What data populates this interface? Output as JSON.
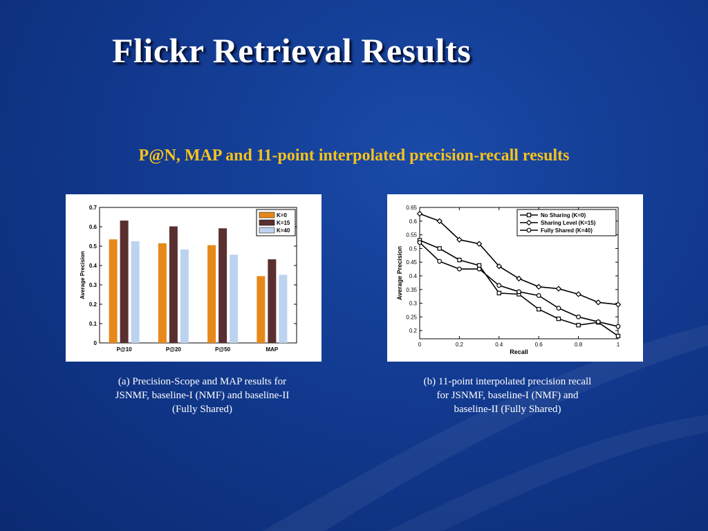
{
  "slide": {
    "title": "Flickr Retrieval Results",
    "subtitle": "P@N, MAP and 11-point interpolated precision-recall results",
    "caption_a": "(a) Precision-Scope and MAP results for JSNMF, baseline-I (NMF) and baseline-II (Fully Shared)",
    "caption_b": "(b) 11-point interpolated precision recall for JSNMF, baseline-I (NMF) and baseline-II (Fully Shared)",
    "colors": {
      "background": "#123a90",
      "title": "#ffffff",
      "subtitle": "#f6c21c",
      "caption": "#ffffff"
    }
  },
  "chart_data": [
    {
      "type": "bar",
      "categories": [
        "P@10",
        "P@20",
        "P@50",
        "MAP"
      ],
      "series": [
        {
          "name": "K=0",
          "color": "#e6891a",
          "values": [
            0.535,
            0.515,
            0.505,
            0.345
          ]
        },
        {
          "name": "K=15",
          "color": "#5a2f2f",
          "values": [
            0.632,
            0.602,
            0.592,
            0.432
          ]
        },
        {
          "name": "K=40",
          "color": "#bcd3f0",
          "values": [
            0.525,
            0.483,
            0.456,
            0.352
          ]
        }
      ],
      "ylabel": "Average Precision",
      "ylim": [
        0,
        0.7
      ],
      "yticks": [
        0,
        0.1,
        0.2,
        0.3,
        0.4,
        0.5,
        0.6,
        0.7
      ],
      "ytick_labels": [
        "0",
        "0.1",
        "0.2",
        "0.3",
        "0.4",
        "0.5",
        "0.6",
        "0.7"
      ],
      "legend_position": "top-right",
      "grid": false
    },
    {
      "type": "line",
      "x": [
        0,
        0.1,
        0.2,
        0.3,
        0.4,
        0.5,
        0.6,
        0.7,
        0.8,
        0.9,
        1.0
      ],
      "series": [
        {
          "name": "No Sharing (K=0)",
          "marker": "square",
          "values": [
            0.53,
            0.5,
            0.458,
            0.438,
            0.337,
            0.333,
            0.278,
            0.243,
            0.22,
            0.23,
            0.18
          ]
        },
        {
          "name": "Sharing Level (K=15)",
          "marker": "diamond",
          "values": [
            0.627,
            0.6,
            0.532,
            0.517,
            0.435,
            0.39,
            0.36,
            0.353,
            0.333,
            0.303,
            0.295
          ]
        },
        {
          "name": "Fully Shared (K=40)",
          "marker": "circle",
          "values": [
            0.522,
            0.453,
            0.425,
            0.425,
            0.365,
            0.342,
            0.328,
            0.282,
            0.25,
            0.232,
            0.215
          ]
        }
      ],
      "xlabel": "Recall",
      "ylabel": "Average Precision",
      "xlim": [
        0,
        1
      ],
      "ylim": [
        0.17,
        0.65
      ],
      "xticks": [
        0,
        0.2,
        0.4,
        0.6,
        0.8,
        1
      ],
      "xtick_labels": [
        "0",
        "0.2",
        "0.4",
        "0.6",
        "0.8",
        "1"
      ],
      "yticks": [
        0.2,
        0.25,
        0.3,
        0.35,
        0.4,
        0.45,
        0.5,
        0.55,
        0.6,
        0.65
      ],
      "ytick_labels": [
        "0.2",
        "0.25",
        "0.3",
        "0.35",
        "0.4",
        "0.45",
        "0.5",
        "0.55",
        "0.6",
        "0.65"
      ],
      "legend_position": "top-right",
      "grid": false
    }
  ]
}
